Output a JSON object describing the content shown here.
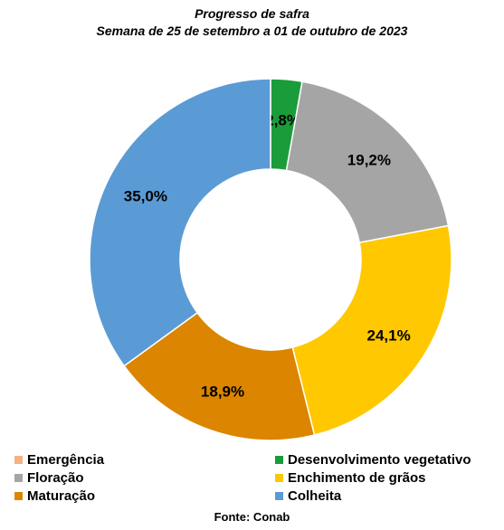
{
  "chart_data": {
    "type": "pie",
    "title": "Progresso de safra",
    "subtitle": "Semana de 25 de setembro a 01 de outubro de 2023",
    "categories": [
      "Emergência",
      "Desenvolvimento vegetativo",
      "Floração",
      "Enchimento de grãos",
      "Maturação",
      "Colheita"
    ],
    "values": [
      0.0,
      2.8,
      19.2,
      24.1,
      18.9,
      35.0
    ],
    "data_labels": [
      "",
      "2,8%",
      "19,2%",
      "24,1%",
      "18,9%",
      "35,0%"
    ],
    "colors": [
      "#f4b183",
      "#1a9c3b",
      "#a5a5a5",
      "#ffc800",
      "#db8500",
      "#5b9bd5"
    ],
    "unit": "%",
    "legend_position": "bottom",
    "source": "Fonte: Conab"
  }
}
